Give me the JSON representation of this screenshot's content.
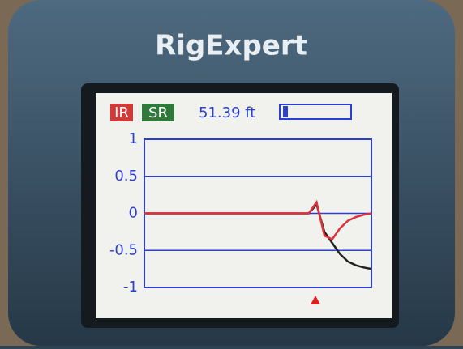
{
  "device": {
    "brand": "RigExpert"
  },
  "chart_data": {
    "type": "line",
    "reading": "51.39 ft",
    "series": [
      {
        "name": "IR",
        "color": "#e0303a",
        "values": [
          0,
          0,
          0,
          0,
          0,
          0,
          0,
          0,
          0,
          0,
          0,
          0,
          0,
          0,
          0,
          0,
          0,
          0,
          0,
          0,
          0,
          0,
          0.15,
          -0.3,
          -0.35,
          -0.2,
          -0.1,
          -0.05,
          -0.02,
          0
        ]
      },
      {
        "name": "SR",
        "color": "#222222",
        "values": [
          0,
          0,
          0,
          0,
          0,
          0,
          0,
          0,
          0,
          0,
          0,
          0,
          0,
          0,
          0,
          0,
          0,
          0,
          0,
          0,
          0,
          0,
          0.12,
          -0.25,
          -0.4,
          -0.55,
          -0.65,
          -0.7,
          -0.73,
          -0.75
        ]
      }
    ],
    "ylim": [
      -1,
      1
    ],
    "yticks": [
      1,
      0.5,
      0,
      -0.5,
      -1
    ],
    "grid": true
  }
}
